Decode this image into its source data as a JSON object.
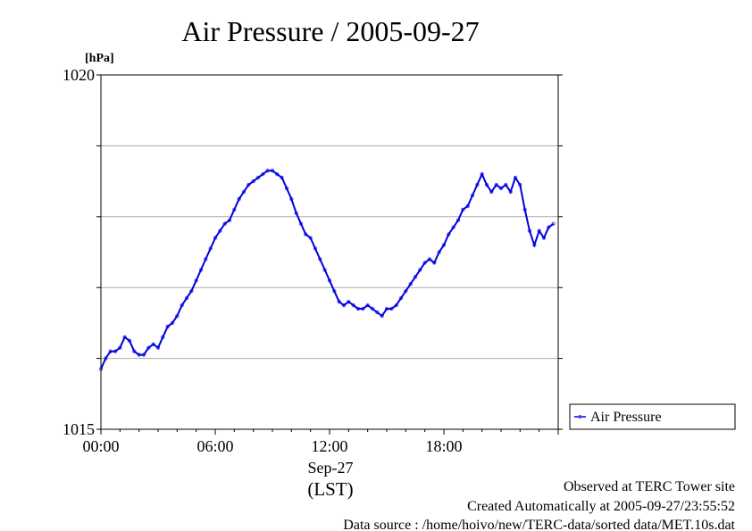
{
  "chart_data": {
    "type": "line",
    "title": "Air Pressure / 2005-09-27",
    "ylabel": "[hPa]",
    "ylim": [
      1015,
      1020
    ],
    "y_ticks": [
      1015,
      1016,
      1017,
      1018,
      1019,
      1020
    ],
    "y_tick_labels": [
      "1015",
      "",
      "",
      "",
      "",
      "1020"
    ],
    "xlim_hours": [
      0,
      24
    ],
    "x_ticks": [
      "00:00",
      "06:00",
      "12:00",
      "18:00"
    ],
    "x_date_label": "Sep-27",
    "x_unit_label": "(LST)",
    "grid": "horizontal",
    "legend_position": "right",
    "series": [
      {
        "name": "Air Pressure",
        "color": "#0000dd",
        "marker_color": "#5555ff",
        "x_hours": [
          0.0,
          0.25,
          0.5,
          0.75,
          1.0,
          1.25,
          1.5,
          1.75,
          2.0,
          2.25,
          2.5,
          2.75,
          3.0,
          3.25,
          3.5,
          3.75,
          4.0,
          4.25,
          4.5,
          4.75,
          5.0,
          5.25,
          5.5,
          5.75,
          6.0,
          6.25,
          6.5,
          6.75,
          7.0,
          7.25,
          7.5,
          7.75,
          8.0,
          8.25,
          8.5,
          8.75,
          9.0,
          9.25,
          9.5,
          9.75,
          10.0,
          10.25,
          10.5,
          10.75,
          11.0,
          11.25,
          11.5,
          11.75,
          12.0,
          12.25,
          12.5,
          12.75,
          13.0,
          13.25,
          13.5,
          13.75,
          14.0,
          14.25,
          14.5,
          14.75,
          15.0,
          15.25,
          15.5,
          15.75,
          16.0,
          16.25,
          16.5,
          16.75,
          17.0,
          17.25,
          17.5,
          17.75,
          18.0,
          18.25,
          18.5,
          18.75,
          19.0,
          19.25,
          19.5,
          19.75,
          20.0,
          20.25,
          20.5,
          20.75,
          21.0,
          21.25,
          21.5,
          21.75,
          22.0,
          22.25,
          22.5,
          22.75,
          23.0,
          23.25,
          23.5,
          23.75
        ],
        "values": [
          1015.85,
          1016.0,
          1016.1,
          1016.1,
          1016.15,
          1016.3,
          1016.25,
          1016.1,
          1016.05,
          1016.05,
          1016.15,
          1016.2,
          1016.15,
          1016.3,
          1016.45,
          1016.5,
          1016.6,
          1016.75,
          1016.85,
          1016.95,
          1017.1,
          1017.25,
          1017.4,
          1017.55,
          1017.7,
          1017.8,
          1017.9,
          1017.95,
          1018.1,
          1018.25,
          1018.35,
          1018.45,
          1018.5,
          1018.55,
          1018.6,
          1018.65,
          1018.65,
          1018.6,
          1018.55,
          1018.4,
          1018.25,
          1018.05,
          1017.9,
          1017.75,
          1017.7,
          1017.55,
          1017.4,
          1017.25,
          1017.1,
          1016.95,
          1016.8,
          1016.75,
          1016.8,
          1016.75,
          1016.7,
          1016.7,
          1016.75,
          1016.7,
          1016.65,
          1016.6,
          1016.7,
          1016.7,
          1016.75,
          1016.85,
          1016.95,
          1017.05,
          1017.15,
          1017.25,
          1017.35,
          1017.4,
          1017.35,
          1017.5,
          1017.6,
          1017.75,
          1017.85,
          1017.95,
          1018.1,
          1018.15,
          1018.3,
          1018.45,
          1018.6,
          1018.45,
          1018.35,
          1018.45,
          1018.4,
          1018.45,
          1018.35,
          1018.55,
          1018.45,
          1018.1,
          1017.8,
          1017.6,
          1017.8,
          1017.7,
          1017.85,
          1017.9
        ]
      }
    ]
  },
  "footer": {
    "line1": "Observed at TERC Tower site",
    "line2": "Created Automatically at 2005-09-27/23:55:52",
    "line3": "Data source : /home/hoivo/new/TERC-data/sorted  data/MET.10s.dat"
  }
}
